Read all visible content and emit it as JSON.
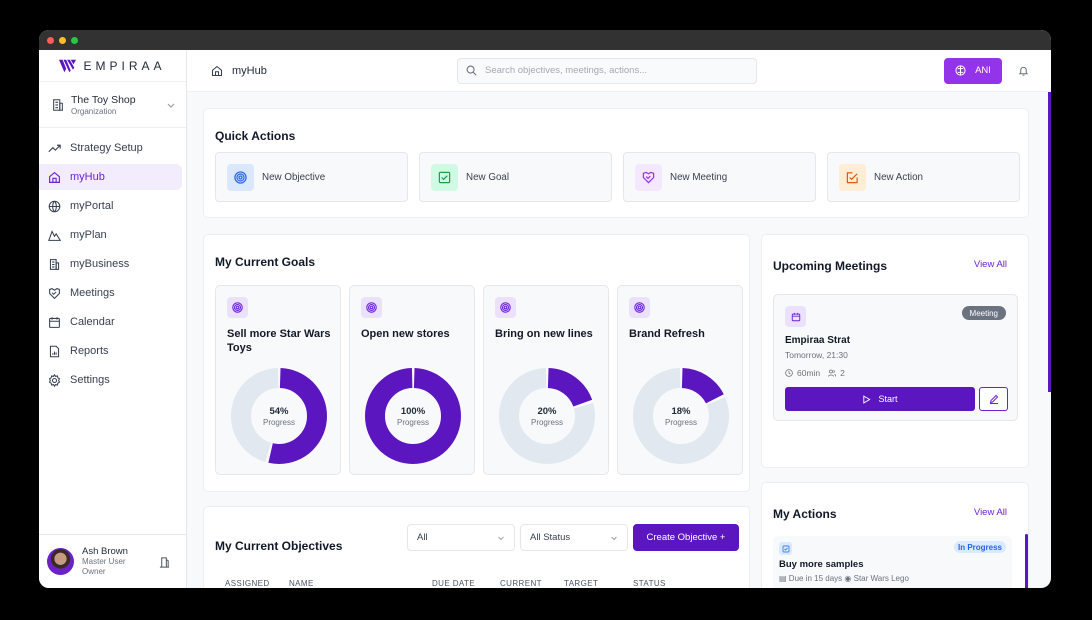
{
  "window": {
    "controls": [
      "close",
      "minimize",
      "maximize"
    ]
  },
  "brand": {
    "name": "EMPIRAA",
    "accent": "#5b16c0",
    "accent_light": "#9333ea"
  },
  "org": {
    "name": "The Toy Shop",
    "type": "Organization"
  },
  "sidebar": {
    "items": [
      {
        "label": "Strategy Setup",
        "icon": "trend-up-icon",
        "active": false
      },
      {
        "label": "myHub",
        "icon": "home-icon",
        "active": true
      },
      {
        "label": "myPortal",
        "icon": "globe-icon",
        "active": false
      },
      {
        "label": "myPlan",
        "icon": "mountain-icon",
        "active": false
      },
      {
        "label": "myBusiness",
        "icon": "building-icon",
        "active": false
      },
      {
        "label": "Meetings",
        "icon": "handshake-icon",
        "active": false
      },
      {
        "label": "Calendar",
        "icon": "calendar-icon",
        "active": false
      },
      {
        "label": "Reports",
        "icon": "report-icon",
        "active": false
      },
      {
        "label": "Settings",
        "icon": "gear-icon",
        "active": false
      }
    ]
  },
  "user": {
    "name": "Ash Brown",
    "role": "Master User",
    "title": "Owner"
  },
  "header": {
    "breadcrumb": "myHub",
    "search_placeholder": "Search objectives, meetings, actions...",
    "ani_label": "ANI"
  },
  "quick_actions": {
    "title": "Quick Actions",
    "items": [
      {
        "label": "New Objective",
        "icon": "target-icon",
        "bg": "#dbe7fd",
        "color": "#2563eb"
      },
      {
        "label": "New Goal",
        "icon": "checkbox-icon",
        "bg": "#d1fae5",
        "color": "#16a34a"
      },
      {
        "label": "New Meeting",
        "icon": "handshake-icon",
        "bg": "#f3e8ff",
        "color": "#9333ea"
      },
      {
        "label": "New Action",
        "icon": "edit-check-icon",
        "bg": "#ffedd5",
        "color": "#ea580c"
      }
    ]
  },
  "goals": {
    "title": "My Current Goals",
    "progress_label": "Progress",
    "items": [
      {
        "name": "Sell more Star Wars Toys",
        "progress": 54,
        "progress_text": "54%"
      },
      {
        "name": "Open new stores",
        "progress": 100,
        "progress_text": "100%"
      },
      {
        "name": "Bring on new lines",
        "progress": 20,
        "progress_text": "20%"
      },
      {
        "name": "Brand Refresh",
        "progress": 18,
        "progress_text": "18%"
      }
    ]
  },
  "objectives": {
    "title": "My Current Objectives",
    "filter_assigned": "All",
    "filter_status": "All Status",
    "create_label": "Create Objective +",
    "columns": [
      "ASSIGNED",
      "NAME",
      "DUE DATE",
      "CURRENT",
      "TARGET",
      "STATUS"
    ]
  },
  "meetings": {
    "title": "Upcoming Meetings",
    "view_all": "View All",
    "items": [
      {
        "badge": "Meeting",
        "title": "Empiraa Strat",
        "time": "Tomorrow, 21:30",
        "duration": "60min",
        "attendees": "2",
        "start_label": "Start"
      }
    ]
  },
  "actions": {
    "title": "My Actions",
    "view_all": "View All",
    "items": [
      {
        "status": "In Progress",
        "title": "Buy more samples",
        "due": "Due in 15 days",
        "objective": "Star Wars Lego"
      }
    ]
  }
}
